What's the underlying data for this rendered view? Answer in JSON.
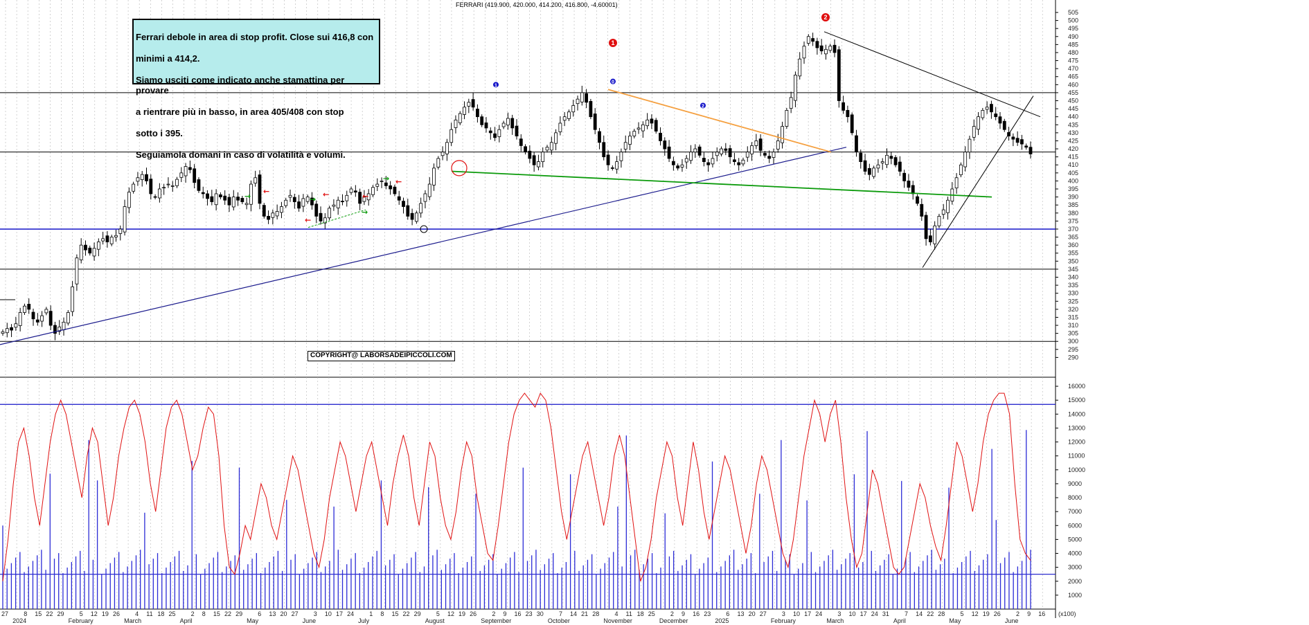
{
  "title": "FERRARI (419.900, 420.000, 414.200, 416.800, -4.60001)",
  "note": {
    "lines": [
      "Ferrari debole in area di stop profit. Close sui 416,8 con",
      "minimi a 414,2.",
      "Siamo usciti come indicato anche stamattina per provare",
      "a rientrare più in basso, in area 405/408 con stop",
      "sotto i 395.",
      "Seguiamola domani in caso di volatilità e volumi."
    ]
  },
  "copyright": "COPYRIGHT@ LABORSADEIPICCOLI.COM",
  "colors": {
    "candle": "#000000",
    "volume": "#2b2bd6",
    "oscillator": "#e01010",
    "trendline_blue": "#1a1a8c",
    "support_blue": "#1414c8",
    "green_line": "#0a9a0a",
    "orange_line": "#f5a040",
    "note_bg": "#b6ecec"
  },
  "chart_data": [
    {
      "type": "candlestick",
      "title": "FERRARI (419.900, 420.000, 414.200, 416.800, -4.60001)",
      "ylim": [
        285,
        505
      ],
      "y_ticks": [
        290,
        295,
        300,
        305,
        310,
        315,
        320,
        325,
        330,
        335,
        340,
        345,
        350,
        355,
        360,
        365,
        370,
        375,
        380,
        385,
        390,
        395,
        400,
        405,
        410,
        415,
        420,
        425,
        430,
        435,
        440,
        445,
        450,
        455,
        460,
        465,
        470,
        475,
        480,
        485,
        490,
        495,
        500,
        505
      ],
      "last_bar": {
        "open": 419.9,
        "high": 420.0,
        "low": 414.2,
        "close": 416.8,
        "change": -4.60001
      },
      "closes": [
        306,
        308,
        307,
        311,
        318,
        322,
        320,
        314,
        312,
        316,
        320,
        310,
        305,
        309,
        312,
        318,
        334,
        352,
        360,
        357,
        355,
        358,
        362,
        364,
        362,
        365,
        366,
        370,
        384,
        393,
        398,
        402,
        404,
        400,
        392,
        390,
        395,
        396,
        398,
        397,
        401,
        405,
        409,
        407,
        399,
        394,
        392,
        389,
        387,
        392,
        390,
        388,
        385,
        390,
        388,
        387,
        386,
        398,
        402,
        386,
        378,
        376,
        380,
        381,
        384,
        388,
        391,
        387,
        383,
        389,
        390,
        385,
        378,
        375,
        377,
        383,
        385,
        388,
        387,
        391,
        395,
        393,
        386,
        390,
        392,
        396,
        398,
        400,
        397,
        395,
        392,
        388,
        384,
        378,
        376,
        380,
        386,
        392,
        398,
        408,
        414,
        418,
        424,
        432,
        438,
        442,
        446,
        449,
        446,
        440,
        435,
        433,
        430,
        427,
        432,
        436,
        439,
        433,
        428,
        422,
        418,
        414,
        410,
        412,
        418,
        421,
        424,
        430,
        436,
        440,
        443,
        447,
        451,
        455,
        449,
        440,
        432,
        424,
        415,
        410,
        408,
        412,
        418,
        424,
        428,
        431,
        433,
        435,
        438,
        436,
        431,
        425,
        420,
        414,
        410,
        408,
        410,
        414,
        418,
        420,
        416,
        412,
        410,
        414,
        418,
        420,
        419,
        415,
        412,
        410,
        413,
        418,
        422,
        425,
        419,
        416,
        414,
        418,
        425,
        434,
        444,
        452,
        466,
        476,
        484,
        490,
        487,
        483,
        481,
        482,
        484,
        480,
        450,
        444,
        440,
        430,
        418,
        412,
        406,
        404,
        408,
        410,
        412,
        416,
        414,
        410,
        406,
        400,
        396,
        392,
        386,
        378,
        364,
        362,
        372,
        378,
        382,
        388,
        395,
        402,
        410,
        418,
        426,
        434,
        440,
        444,
        446,
        443,
        440,
        436,
        432,
        428,
        426,
        424,
        423,
        421,
        416.8
      ]
    },
    {
      "type": "bar+line",
      "series": [
        {
          "kind": "volume"
        },
        {
          "kind": "oscillator"
        }
      ],
      "ylim": [
        0,
        16500
      ],
      "y_ticks": [
        1000,
        2000,
        3000,
        4000,
        5000,
        6000,
        7000,
        8000,
        9000,
        10000,
        11000,
        12000,
        13000,
        14000,
        15000,
        16000
      ],
      "scale_label": "(x100)",
      "oscillator": [
        2000,
        5000,
        9000,
        12000,
        13000,
        11000,
        8000,
        6000,
        9000,
        12000,
        14000,
        15000,
        14000,
        12000,
        10000,
        8000,
        11000,
        13000,
        12000,
        9000,
        6000,
        8000,
        11000,
        13000,
        14500,
        15000,
        14000,
        12000,
        9000,
        7000,
        10000,
        13000,
        14500,
        15000,
        14000,
        12000,
        10000,
        11000,
        13000,
        14500,
        14000,
        11000,
        6000,
        3000,
        2500,
        4000,
        6000,
        5000,
        7000,
        9000,
        8000,
        6000,
        5000,
        7000,
        9000,
        11000,
        10000,
        8000,
        6000,
        4000,
        3000,
        5000,
        8000,
        10000,
        12000,
        11000,
        9000,
        7000,
        9000,
        11000,
        12000,
        10000,
        8000,
        6000,
        9000,
        11000,
        12500,
        11000,
        8000,
        6000,
        9000,
        12000,
        11000,
        8000,
        6000,
        5000,
        7000,
        10000,
        12000,
        11000,
        8000,
        6000,
        4000,
        3500,
        6000,
        9000,
        12000,
        14000,
        15000,
        15500,
        15000,
        14500,
        15500,
        15000,
        13000,
        10000,
        7000,
        5000,
        7000,
        9000,
        11000,
        12000,
        10000,
        8000,
        6000,
        8000,
        11000,
        12500,
        11000,
        8000,
        5000,
        2000,
        3000,
        5000,
        8000,
        10000,
        12000,
        11000,
        8000,
        6000,
        9000,
        12000,
        10000,
        7000,
        5000,
        7000,
        9000,
        11000,
        10000,
        8000,
        6000,
        4000,
        6000,
        9000,
        11000,
        10000,
        8000,
        6000,
        4000,
        3000,
        5000,
        8000,
        11000,
        13000,
        15000,
        14000,
        12000,
        14000,
        15000,
        12000,
        8000,
        5000,
        3000,
        4000,
        7000,
        10000,
        9000,
        7000,
        5000,
        3000,
        2500,
        3000,
        5000,
        7000,
        9000,
        8000,
        6000,
        4500,
        3500,
        6000,
        9000,
        12000,
        11000,
        9000,
        7000,
        9000,
        12000,
        14000,
        15000,
        15500,
        15500,
        14000,
        9000,
        5000,
        4000,
        3500
      ]
    }
  ],
  "x_labels": [
    "27",
    "2024",
    "8",
    "15",
    "22",
    "29",
    "February",
    "5",
    "12",
    "19",
    "26",
    "March",
    "4",
    "11",
    "18",
    "25",
    "April",
    "2",
    "8",
    "15",
    "22",
    "29",
    "May",
    "6",
    "13",
    "20",
    "27",
    "June",
    "3",
    "10",
    "17",
    "24",
    "July",
    "1",
    "8",
    "15",
    "22",
    "29",
    "August",
    "5",
    "12",
    "19",
    "26",
    "September",
    "2",
    "9",
    "16",
    "23",
    "30",
    "October",
    "7",
    "14",
    "21",
    "28",
    "November",
    "4",
    "11",
    "18",
    "25",
    "December",
    "2",
    "9",
    "16",
    "23",
    "2025",
    "6",
    "13",
    "20",
    "27",
    "February",
    "3",
    "10",
    "17",
    "24",
    "March",
    "3",
    "10",
    "17",
    "24",
    "31",
    "April",
    "7",
    "14",
    "22",
    "28",
    "May",
    "5",
    "12",
    "19",
    "26",
    "June",
    "2",
    "9",
    "16"
  ],
  "markers": [
    {
      "label": "1",
      "color": "#e01010"
    },
    {
      "label": "2",
      "color": "#e01010"
    },
    {
      "label": "0",
      "color": "#1414c8"
    },
    {
      "label": "1",
      "color": "#1414c8"
    },
    {
      "label": "2",
      "color": "#1414c8"
    }
  ]
}
